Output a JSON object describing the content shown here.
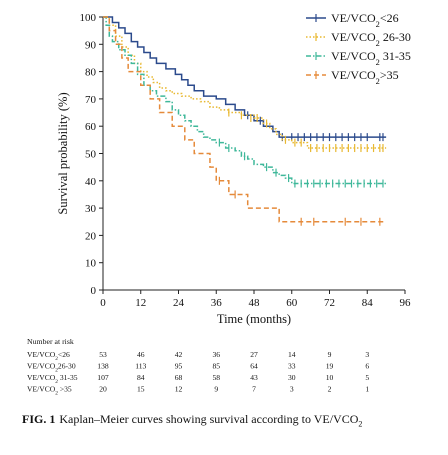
{
  "chart_data": {
    "type": "line",
    "title": "",
    "xlabel": "Time (months)",
    "ylabel": "Survival probability (%)",
    "xlim": [
      0,
      96
    ],
    "ylim": [
      0,
      100
    ],
    "xticks": [
      0,
      12,
      24,
      36,
      48,
      60,
      72,
      84,
      96
    ],
    "yticks": [
      0,
      10,
      20,
      30,
      40,
      50,
      60,
      70,
      80,
      90,
      100
    ],
    "legend_position": "top-right",
    "series": [
      {
        "name_main": "VE/VCO",
        "name_sub": "2",
        "name_tail": "<26",
        "color": "#2b4a8c",
        "dash": "solid",
        "steps": [
          [
            0,
            100
          ],
          [
            3,
            98
          ],
          [
            5,
            96
          ],
          [
            7,
            94
          ],
          [
            9,
            91
          ],
          [
            11,
            89
          ],
          [
            13,
            87
          ],
          [
            15,
            85
          ],
          [
            17,
            83
          ],
          [
            20,
            81
          ],
          [
            23,
            79
          ],
          [
            25,
            77
          ],
          [
            27,
            75
          ],
          [
            29,
            73
          ],
          [
            32,
            71
          ],
          [
            36,
            70
          ],
          [
            39,
            68
          ],
          [
            42,
            66
          ],
          [
            45,
            64
          ],
          [
            48,
            62
          ],
          [
            51,
            60
          ],
          [
            54,
            58
          ],
          [
            56,
            56
          ],
          [
            90,
            56
          ]
        ],
        "censors": [
          [
            46,
            64
          ],
          [
            50,
            62
          ],
          [
            57,
            56
          ],
          [
            60,
            56
          ],
          [
            62,
            56
          ],
          [
            64,
            56
          ],
          [
            66,
            56
          ],
          [
            68,
            56
          ],
          [
            70,
            56
          ],
          [
            72,
            56
          ],
          [
            74,
            56
          ],
          [
            76,
            56
          ],
          [
            78,
            56
          ],
          [
            80,
            56
          ],
          [
            82,
            56
          ],
          [
            84,
            56
          ],
          [
            88,
            56
          ],
          [
            89,
            56
          ]
        ]
      },
      {
        "name_main": "VE/VCO",
        "name_sub": "2",
        "name_tail": " 26-30",
        "color": "#e8b830",
        "dash": "dot",
        "steps": [
          [
            0,
            100
          ],
          [
            2,
            97
          ],
          [
            4,
            93
          ],
          [
            6,
            89
          ],
          [
            8,
            86
          ],
          [
            10,
            83
          ],
          [
            12,
            80
          ],
          [
            14,
            78
          ],
          [
            16,
            76
          ],
          [
            18,
            74
          ],
          [
            20,
            73
          ],
          [
            22,
            72
          ],
          [
            25,
            71
          ],
          [
            28,
            70
          ],
          [
            31,
            69
          ],
          [
            34,
            67
          ],
          [
            37,
            66
          ],
          [
            40,
            65
          ],
          [
            44,
            64
          ],
          [
            48,
            63
          ],
          [
            51,
            61
          ],
          [
            53,
            59
          ],
          [
            55,
            57
          ],
          [
            57,
            55
          ],
          [
            60,
            54
          ],
          [
            65,
            52
          ],
          [
            90,
            52
          ]
        ],
        "censors": [
          [
            40,
            65
          ],
          [
            44,
            64
          ],
          [
            47,
            63
          ],
          [
            49,
            63
          ],
          [
            52,
            61
          ],
          [
            58,
            55
          ],
          [
            61,
            54
          ],
          [
            63,
            54
          ],
          [
            66,
            52
          ],
          [
            68,
            52
          ],
          [
            70,
            52
          ],
          [
            72,
            52
          ],
          [
            74,
            52
          ],
          [
            76,
            52
          ],
          [
            78,
            52
          ],
          [
            80,
            52
          ],
          [
            82,
            52
          ],
          [
            84,
            52
          ],
          [
            86,
            52
          ],
          [
            88,
            52
          ],
          [
            89,
            52
          ]
        ]
      },
      {
        "name_main": "VE/VCO",
        "name_sub": "2",
        "name_tail": " 31-35",
        "color": "#3fb89a",
        "dash": "dashdot",
        "steps": [
          [
            0,
            100
          ],
          [
            1,
            97
          ],
          [
            2,
            93
          ],
          [
            3,
            91
          ],
          [
            5,
            88
          ],
          [
            7,
            86
          ],
          [
            9,
            83
          ],
          [
            11,
            79
          ],
          [
            13,
            75
          ],
          [
            15,
            73
          ],
          [
            17,
            71
          ],
          [
            20,
            69
          ],
          [
            22,
            66
          ],
          [
            24,
            64
          ],
          [
            26,
            62
          ],
          [
            28,
            60
          ],
          [
            30,
            58
          ],
          [
            32,
            56
          ],
          [
            34,
            55
          ],
          [
            36,
            54
          ],
          [
            39,
            52
          ],
          [
            42,
            51
          ],
          [
            44,
            49
          ],
          [
            46,
            48
          ],
          [
            48,
            46
          ],
          [
            51,
            45
          ],
          [
            54,
            43
          ],
          [
            56,
            42
          ],
          [
            58,
            41
          ],
          [
            60,
            39
          ],
          [
            90,
            39
          ]
        ],
        "censors": [
          [
            37,
            54
          ],
          [
            40,
            52
          ],
          [
            45,
            49
          ],
          [
            52,
            45
          ],
          [
            55,
            43
          ],
          [
            59,
            41
          ],
          [
            61,
            39
          ],
          [
            63,
            39
          ],
          [
            65,
            39
          ],
          [
            67,
            39
          ],
          [
            69,
            39
          ],
          [
            71,
            39
          ],
          [
            73,
            39
          ],
          [
            75,
            39
          ],
          [
            77,
            39
          ],
          [
            79,
            39
          ],
          [
            81,
            39
          ],
          [
            83,
            39
          ],
          [
            85,
            39
          ],
          [
            87,
            39
          ],
          [
            89,
            39
          ]
        ]
      },
      {
        "name_main": "VE/VCO",
        "name_sub": "2",
        "name_tail": ">35",
        "color": "#e58a3a",
        "dash": "dash",
        "steps": [
          [
            0,
            100
          ],
          [
            2,
            95
          ],
          [
            4,
            90
          ],
          [
            6,
            85
          ],
          [
            8,
            80
          ],
          [
            12,
            75
          ],
          [
            15,
            70
          ],
          [
            18,
            65
          ],
          [
            22,
            60
          ],
          [
            26,
            55
          ],
          [
            29,
            50
          ],
          [
            34,
            45
          ],
          [
            36,
            40
          ],
          [
            40,
            35
          ],
          [
            46,
            30
          ],
          [
            56,
            25
          ],
          [
            90,
            25
          ]
        ],
        "censors": [
          [
            37,
            40
          ],
          [
            42,
            35
          ],
          [
            63,
            25
          ],
          [
            67,
            25
          ],
          [
            77,
            25
          ],
          [
            82,
            25
          ],
          [
            88,
            25
          ]
        ]
      }
    ]
  },
  "risk_table": {
    "title": "Number at risk",
    "rows": [
      {
        "label_main": "VE/VCO",
        "label_sub": "2",
        "label_tail": "<26",
        "counts": [
          "53",
          "46",
          "42",
          "36",
          "27",
          "14",
          "9",
          "3"
        ]
      },
      {
        "label_main": "VE/VCO",
        "label_sub": "2",
        "label_tail": "26-30",
        "counts": [
          "138",
          "113",
          "95",
          "85",
          "64",
          "33",
          "19",
          "6"
        ]
      },
      {
        "label_main": "VE/VCO",
        "label_sub": "2",
        "label_tail": " 31-35",
        "counts": [
          "107",
          "84",
          "68",
          "58",
          "43",
          "30",
          "10",
          "5"
        ]
      },
      {
        "label_main": "VE/VCO",
        "label_sub": "2",
        "label_tail": " >35",
        "counts": [
          "20",
          "15",
          "12",
          "9",
          "7",
          "3",
          "2",
          "1"
        ]
      }
    ]
  },
  "caption": {
    "label": "FIG. 1",
    "text": "Kaplan–Meier curves showing survival according to VE/VCO",
    "sub": "2"
  }
}
